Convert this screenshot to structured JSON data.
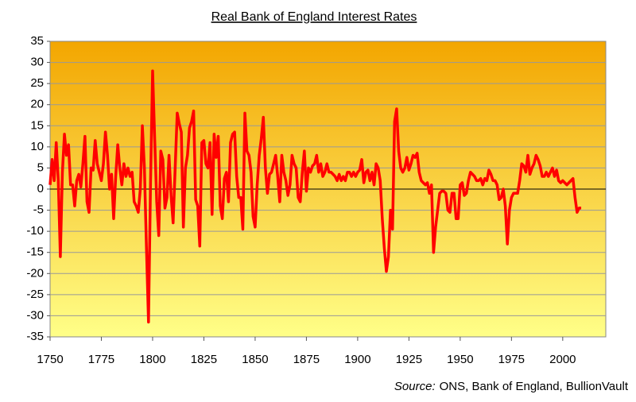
{
  "chart_data": {
    "type": "line",
    "title": "Real Bank of England Interest Rates",
    "source_label": "Source:",
    "source_text": "ONS, Bank of England, BullionVault",
    "color": "#ff0000",
    "grid": true,
    "xlim": [
      1750,
      2021
    ],
    "ylim": [
      -35,
      35
    ],
    "xticks": [
      1750,
      1775,
      1800,
      1825,
      1850,
      1875,
      1900,
      1925,
      1950,
      1975,
      2000
    ],
    "yticks": [
      -35,
      -30,
      -25,
      -20,
      -15,
      -10,
      -5,
      0,
      5,
      10,
      15,
      20,
      25,
      30,
      35
    ],
    "x": [
      1750,
      1751,
      1752,
      1753,
      1754,
      1755,
      1756,
      1757,
      1758,
      1759,
      1760,
      1761,
      1762,
      1763,
      1764,
      1765,
      1766,
      1767,
      1768,
      1769,
      1770,
      1771,
      1772,
      1773,
      1774,
      1775,
      1776,
      1777,
      1778,
      1779,
      1780,
      1781,
      1782,
      1783,
      1784,
      1785,
      1786,
      1787,
      1788,
      1789,
      1790,
      1791,
      1792,
      1793,
      1794,
      1795,
      1796,
      1797,
      1798,
      1799,
      1800,
      1801,
      1802,
      1803,
      1804,
      1805,
      1806,
      1807,
      1808,
      1809,
      1810,
      1811,
      1812,
      1813,
      1814,
      1815,
      1816,
      1817,
      1818,
      1819,
      1820,
      1821,
      1822,
      1823,
      1824,
      1825,
      1826,
      1827,
      1828,
      1829,
      1830,
      1831,
      1832,
      1833,
      1834,
      1835,
      1836,
      1837,
      1838,
      1839,
      1840,
      1841,
      1842,
      1843,
      1844,
      1845,
      1846,
      1847,
      1848,
      1849,
      1850,
      1851,
      1852,
      1853,
      1854,
      1855,
      1856,
      1857,
      1858,
      1859,
      1860,
      1861,
      1862,
      1863,
      1864,
      1865,
      1866,
      1867,
      1868,
      1869,
      1870,
      1871,
      1872,
      1873,
      1874,
      1875,
      1876,
      1877,
      1878,
      1879,
      1880,
      1881,
      1882,
      1883,
      1884,
      1885,
      1886,
      1887,
      1888,
      1889,
      1890,
      1891,
      1892,
      1893,
      1894,
      1895,
      1896,
      1897,
      1898,
      1899,
      1900,
      1901,
      1902,
      1903,
      1904,
      1905,
      1906,
      1907,
      1908,
      1909,
      1910,
      1911,
      1912,
      1913,
      1914,
      1915,
      1916,
      1917,
      1918,
      1919,
      1920,
      1921,
      1922,
      1923,
      1924,
      1925,
      1926,
      1927,
      1928,
      1929,
      1930,
      1931,
      1932,
      1933,
      1934,
      1935,
      1936,
      1937,
      1938,
      1939,
      1940,
      1941,
      1942,
      1943,
      1944,
      1945,
      1946,
      1947,
      1948,
      1949,
      1950,
      1951,
      1952,
      1953,
      1954,
      1955,
      1956,
      1957,
      1958,
      1959,
      1960,
      1961,
      1962,
      1963,
      1964,
      1965,
      1966,
      1967,
      1968,
      1969,
      1970,
      1971,
      1972,
      1973,
      1974,
      1975,
      1976,
      1977,
      1978,
      1979,
      1980,
      1981,
      1982,
      1983,
      1984,
      1985,
      1986,
      1987,
      1988,
      1989,
      1990,
      1991,
      1992,
      1993,
      1994,
      1995,
      1996,
      1997,
      1998,
      1999,
      2000,
      2001,
      2002,
      2003,
      2004,
      2005,
      2006,
      2007,
      2008,
      2009
    ],
    "values": [
      1,
      7,
      2,
      11,
      2,
      -16,
      4,
      13,
      8,
      10.5,
      1,
      1,
      -4,
      2,
      3.5,
      0.5,
      6,
      12.5,
      -3,
      -5.5,
      5,
      4.5,
      11.5,
      6,
      4,
      2,
      6,
      13.5,
      8,
      0,
      3.5,
      -7,
      3,
      10.5,
      5,
      1,
      6,
      3,
      5,
      3,
      4,
      -3,
      -4,
      -5.5,
      0,
      15,
      5,
      -14,
      -31.5,
      2,
      28,
      12,
      -3,
      -11,
      9,
      7,
      -4.5,
      -2,
      8,
      -1.5,
      -8,
      5,
      18,
      15.5,
      13.5,
      -9,
      5,
      8,
      14.5,
      16,
      18.5,
      -2.5,
      -4,
      -13.5,
      11,
      11.5,
      6,
      5,
      11,
      -6,
      13,
      7.5,
      12.5,
      -4,
      -7,
      2.5,
      4,
      -3,
      11,
      13,
      13.5,
      3,
      -2,
      -2,
      -9.5,
      18,
      9,
      8,
      4,
      -6.5,
      -9,
      1,
      8,
      12,
      17,
      5,
      -1,
      3.5,
      4,
      6,
      8,
      3,
      -3,
      8,
      4,
      2,
      -1.5,
      1,
      8,
      6,
      5,
      -2,
      -3,
      4,
      9,
      -0.5,
      5,
      4,
      5.5,
      6,
      8,
      4,
      6,
      3,
      4,
      6,
      4,
      4,
      3.5,
      3,
      2,
      3.5,
      2,
      3,
      2,
      4,
      4,
      3,
      4,
      3,
      4,
      4.5,
      7,
      1.5,
      4,
      4.5,
      2,
      4,
      1,
      6,
      5,
      2,
      -7,
      -14,
      -19.5,
      -16,
      -5,
      -9.5,
      16,
      19,
      9,
      5,
      4,
      5,
      7.5,
      4.5,
      6,
      8,
      7.5,
      8.5,
      4,
      2,
      1.5,
      1,
      1.5,
      -1,
      1,
      -15,
      -9,
      -5,
      -1,
      -0.5,
      -0.5,
      -1,
      -5,
      -5.5,
      -1,
      -1,
      -7,
      -7,
      1,
      1.5,
      -1.5,
      -1,
      2,
      4,
      3.5,
      3,
      2,
      2,
      2.5,
      1,
      2.5,
      2,
      4.5,
      3.5,
      2,
      2,
      1,
      -2.5,
      -2,
      0,
      -4,
      -13,
      -5,
      -2,
      -1,
      -1,
      -1,
      2,
      6,
      5.5,
      4,
      8,
      3.5,
      5,
      6,
      8,
      7,
      5.5,
      3,
      3,
      4,
      3,
      4,
      5,
      3,
      4.5,
      2,
      1.5,
      2,
      1.5,
      1,
      1.5,
      2,
      2.5,
      -2,
      -5.5,
      -4.5,
      -4.5
    ]
  }
}
